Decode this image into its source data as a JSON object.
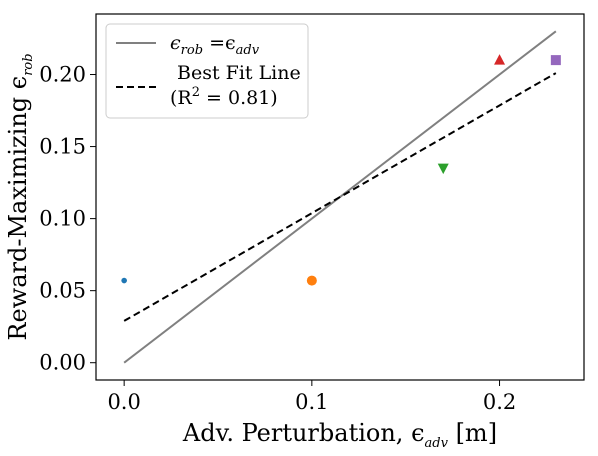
{
  "chart_data": {
    "type": "scatter",
    "xlabel": "Adv. Perturbation, ϵ",
    "xlabel_sub": "adv",
    "xlabel_unit": " [m]",
    "ylabel": "Reward-Maximizing ϵ",
    "ylabel_sub": "rob",
    "xlim": [
      -0.015,
      0.245
    ],
    "ylim": [
      -0.012,
      0.242
    ],
    "xticks": [
      0.0,
      0.1,
      0.2
    ],
    "xtick_labels": [
      "0.0",
      "0.1",
      "0.2"
    ],
    "yticks": [
      0.0,
      0.05,
      0.1,
      0.15,
      0.2
    ],
    "ytick_labels": [
      "0.00",
      "0.05",
      "0.10",
      "0.15",
      "0.20"
    ],
    "grid": false,
    "legend_position": "top-left",
    "points": [
      {
        "x": 0.0,
        "y": 0.057,
        "marker": "dot",
        "color": "#1f77b4"
      },
      {
        "x": 0.1,
        "y": 0.057,
        "marker": "circle",
        "color": "#ff7f0e"
      },
      {
        "x": 0.17,
        "y": 0.135,
        "marker": "triangle-down",
        "color": "#2ca02c"
      },
      {
        "x": 0.2,
        "y": 0.21,
        "marker": "triangle-up",
        "color": "#d62728"
      },
      {
        "x": 0.23,
        "y": 0.21,
        "marker": "square",
        "color": "#9467bd"
      }
    ],
    "identity_line": {
      "x": [
        0.0,
        0.23
      ],
      "y": [
        0.0,
        0.23
      ],
      "color": "#808080",
      "legend_label_main": "ϵ",
      "legend_label_sub1": "rob",
      "legend_label_mid": " =ϵ",
      "legend_label_sub2": "adv"
    },
    "fit_line": {
      "x": [
        0.0,
        0.23
      ],
      "y": [
        0.029,
        0.201
      ],
      "color": "#000000",
      "legend_label_line1": "Best Fit Line",
      "legend_label_line2_pre": "(R",
      "legend_label_line2_sup": "2",
      "legend_label_line2_post": " = 0.81)"
    }
  }
}
